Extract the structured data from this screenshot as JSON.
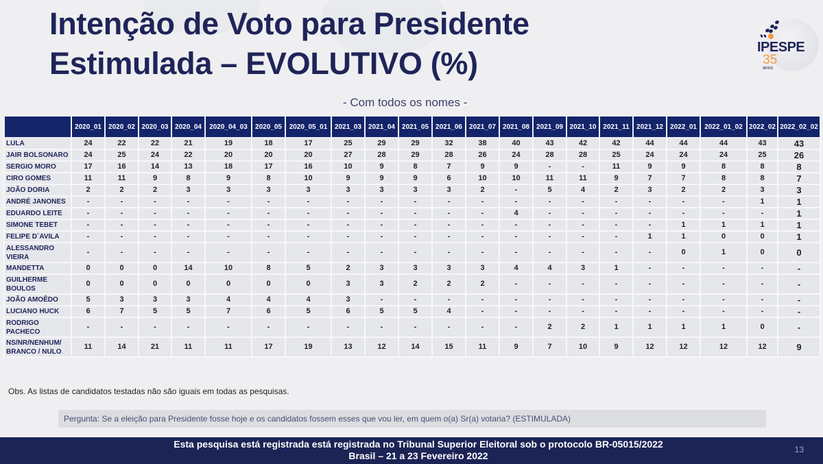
{
  "header": {
    "title_line1": "Intenção de Voto para Presidente",
    "title_line2": "Estimulada – EVOLUTIVO (%)",
    "subtitle": "- Com todos os nomes -"
  },
  "logo": {
    "brand": "IPESPE",
    "years": "35",
    "years_label": "anos",
    "colors": {
      "navy": "#1f2459",
      "orange": "#f39a3c"
    }
  },
  "table": {
    "columns": [
      "",
      "2020_01",
      "2020_02",
      "2020_03",
      "2020_04",
      "2020_04_03",
      "2020_05",
      "2020_05_01",
      "2021_03",
      "2021_04",
      "2021_05",
      "2021_06",
      "2021_07",
      "2021_08",
      "2021_09",
      "2021_10",
      "2021_11",
      "2021_12",
      "2022_01",
      "2022_01_02",
      "2022_02",
      "2022_02_02"
    ],
    "rows": [
      {
        "name": "LULA",
        "values": [
          "24",
          "22",
          "22",
          "21",
          "19",
          "18",
          "17",
          "25",
          "29",
          "29",
          "32",
          "38",
          "40",
          "43",
          "42",
          "42",
          "44",
          "44",
          "44",
          "43",
          "43"
        ]
      },
      {
        "name": "JAIR BOLSONARO",
        "values": [
          "24",
          "25",
          "24",
          "22",
          "20",
          "20",
          "20",
          "27",
          "28",
          "29",
          "28",
          "26",
          "24",
          "28",
          "28",
          "25",
          "24",
          "24",
          "24",
          "25",
          "26"
        ]
      },
      {
        "name": "SERGIO MORO",
        "values": [
          "17",
          "16",
          "14",
          "13",
          "18",
          "17",
          "16",
          "10",
          "9",
          "8",
          "7",
          "9",
          "9",
          "-",
          "-",
          "11",
          "9",
          "9",
          "8",
          "8",
          "8"
        ]
      },
      {
        "name": "CIRO GOMES",
        "values": [
          "11",
          "11",
          "9",
          "8",
          "9",
          "8",
          "10",
          "9",
          "9",
          "9",
          "6",
          "10",
          "10",
          "11",
          "11",
          "9",
          "7",
          "7",
          "8",
          "8",
          "7"
        ]
      },
      {
        "name": "JOÃO DORIA",
        "values": [
          "2",
          "2",
          "2",
          "3",
          "3",
          "3",
          "3",
          "3",
          "3",
          "3",
          "3",
          "2",
          "-",
          "5",
          "4",
          "2",
          "3",
          "2",
          "2",
          "3",
          "3"
        ]
      },
      {
        "name": "ANDRÉ JANONES",
        "values": [
          "-",
          "-",
          "-",
          "-",
          "-",
          "-",
          "-",
          "-",
          "-",
          "-",
          "-",
          "-",
          "-",
          "-",
          "-",
          "-",
          "-",
          "-",
          "-",
          "1",
          "1"
        ]
      },
      {
        "name": "EDUARDO LEITE",
        "values": [
          "-",
          "-",
          "-",
          "-",
          "-",
          "-",
          "-",
          "-",
          "-",
          "-",
          "-",
          "-",
          "4",
          "-",
          "-",
          "-",
          "-",
          "-",
          "-",
          "-",
          "1"
        ]
      },
      {
        "name": "SIMONE TEBET",
        "values": [
          "-",
          "-",
          "-",
          "-",
          "-",
          "-",
          "-",
          "-",
          "-",
          "-",
          "-",
          "-",
          "-",
          "-",
          "-",
          "-",
          "-",
          "1",
          "1",
          "1",
          "1"
        ]
      },
      {
        "name": "FELIPE D`AVILA",
        "values": [
          "-",
          "-",
          "-",
          "-",
          "-",
          "-",
          "-",
          "-",
          "-",
          "-",
          "-",
          "-",
          "-",
          "-",
          "-",
          "-",
          "1",
          "1",
          "0",
          "0",
          "1"
        ]
      },
      {
        "name": "ALESSANDRO VIEIRA",
        "tall": true,
        "values": [
          "-",
          "-",
          "-",
          "-",
          "-",
          "-",
          "-",
          "-",
          "-",
          "-",
          "-",
          "-",
          "-",
          "-",
          "-",
          "-",
          "-",
          "0",
          "1",
          "0",
          "0"
        ]
      },
      {
        "name": "MANDETTA",
        "values": [
          "0",
          "0",
          "0",
          "14",
          "10",
          "8",
          "5",
          "2",
          "3",
          "3",
          "3",
          "3",
          "4",
          "4",
          "3",
          "1",
          "-",
          "-",
          "-",
          "-",
          "-"
        ]
      },
      {
        "name": "GUILHERME BOULOS",
        "tall": true,
        "values": [
          "0",
          "0",
          "0",
          "0",
          "0",
          "0",
          "0",
          "3",
          "3",
          "2",
          "2",
          "2",
          "-",
          "-",
          "-",
          "-",
          "-",
          "-",
          "-",
          "-",
          "-"
        ]
      },
      {
        "name": "JOÃO AMOÊDO",
        "values": [
          "5",
          "3",
          "3",
          "3",
          "4",
          "4",
          "4",
          "3",
          "-",
          "-",
          "-",
          "-",
          "-",
          "-",
          "-",
          "-",
          "-",
          "-",
          "-",
          "-",
          "-"
        ]
      },
      {
        "name": "LUCIANO HUCK",
        "values": [
          "6",
          "7",
          "5",
          "5",
          "7",
          "6",
          "5",
          "6",
          "5",
          "5",
          "4",
          "-",
          "-",
          "-",
          "-",
          "-",
          "-",
          "-",
          "-",
          "-",
          "-"
        ]
      },
      {
        "name": "RODRIGO PACHECO",
        "tall": true,
        "values": [
          "-",
          "-",
          "-",
          "-",
          "-",
          "-",
          "-",
          "-",
          "-",
          "-",
          "-",
          "-",
          "-",
          "2",
          "2",
          "1",
          "1",
          "1",
          "1",
          "0",
          "-"
        ]
      },
      {
        "name": "NS/NR/NENHUM/ BRANCO / NULO",
        "tall": true,
        "values": [
          "11",
          "14",
          "21",
          "11",
          "11",
          "17",
          "19",
          "13",
          "12",
          "14",
          "15",
          "11",
          "9",
          "7",
          "10",
          "9",
          "12",
          "12",
          "12",
          "12",
          "9"
        ]
      }
    ]
  },
  "notes": {
    "obs": "Obs. As listas de candidatos testadas não são iguais em todas as pesquisas.",
    "question": "Pergunta:  Se a eleição para Presidente fosse hoje e os candidatos fossem esses que vou ler, em quem o(a) Sr(a) votaria? (ESTIMULADA)"
  },
  "footer": {
    "line1": "Esta pesquisa está registrada está registrada no Tribunal Superior Eleitoral sob o protocolo BR-05015/2022",
    "line2": "Brasil – 21 a 23 Fevereiro 2022",
    "page_number": "13"
  }
}
